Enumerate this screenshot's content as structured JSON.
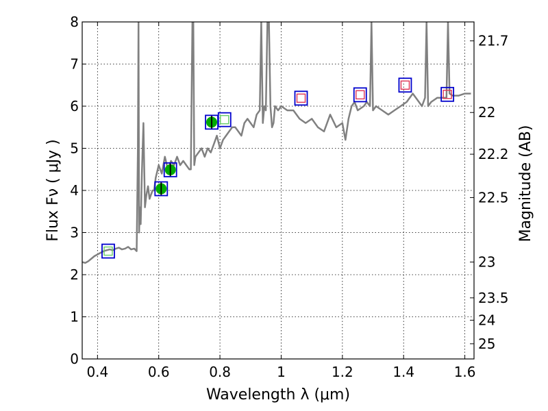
{
  "chart_data": {
    "type": "line",
    "xlabel": "Wavelength  λ (μm)",
    "ylabel": "Flux  Fν  ( μJy )",
    "y2label": "Magnitude (AB)",
    "xlim": [
      0.35,
      1.63
    ],
    "ylim": [
      0,
      8
    ],
    "x_ticks": [
      {
        "v": 0.4,
        "label": "0.4"
      },
      {
        "v": 0.6,
        "label": "0.6"
      },
      {
        "v": 0.8,
        "label": "0.8"
      },
      {
        "v": 1.0,
        "label": "1"
      },
      {
        "v": 1.2,
        "label": "1.2"
      },
      {
        "v": 1.4,
        "label": "1.4"
      },
      {
        "v": 1.6,
        "label": "1.6"
      }
    ],
    "y_ticks": [
      {
        "v": 0,
        "label": "0"
      },
      {
        "v": 1,
        "label": "1"
      },
      {
        "v": 2,
        "label": "2"
      },
      {
        "v": 3,
        "label": "3"
      },
      {
        "v": 4,
        "label": "4"
      },
      {
        "v": 5,
        "label": "5"
      },
      {
        "v": 6,
        "label": "6"
      },
      {
        "v": 7,
        "label": "7"
      },
      {
        "v": 8,
        "label": "8"
      }
    ],
    "y2_ticks": [
      {
        "flux": 7.55,
        "label": "21.7"
      },
      {
        "flux": 5.85,
        "label": "22"
      },
      {
        "flux": 4.86,
        "label": "22.2"
      },
      {
        "flux": 3.83,
        "label": "22.5"
      },
      {
        "flux": 2.3,
        "label": "23"
      },
      {
        "flux": 1.45,
        "label": "23.5"
      },
      {
        "flux": 0.92,
        "label": "24"
      },
      {
        "flux": 0.36,
        "label": "25"
      }
    ],
    "grid": true,
    "grid_style": "dotted",
    "colors": {
      "spectrum": "#808080",
      "model_box": "#0000cc",
      "optical_obs": "#66cc66",
      "nir_obs": "#dd3355",
      "detection_point": "#00aa00"
    },
    "series": [
      {
        "kind": "spectrum",
        "x": [
          0.35,
          0.36,
          0.37,
          0.38,
          0.39,
          0.4,
          0.41,
          0.42,
          0.43,
          0.44,
          0.45,
          0.46,
          0.47,
          0.48,
          0.49,
          0.5,
          0.51,
          0.52,
          0.528,
          0.532,
          0.534,
          0.536,
          0.538,
          0.541,
          0.545,
          0.55,
          0.555,
          0.56,
          0.565,
          0.57,
          0.575,
          0.58,
          0.585,
          0.59,
          0.6,
          0.61,
          0.62,
          0.63,
          0.64,
          0.65,
          0.66,
          0.67,
          0.68,
          0.69,
          0.7,
          0.705,
          0.71,
          0.713,
          0.716,
          0.72,
          0.73,
          0.74,
          0.75,
          0.76,
          0.77,
          0.78,
          0.79,
          0.8,
          0.81,
          0.82,
          0.83,
          0.84,
          0.85,
          0.86,
          0.87,
          0.88,
          0.89,
          0.9,
          0.91,
          0.92,
          0.93,
          0.935,
          0.94,
          0.945,
          0.95,
          0.955,
          0.96,
          0.965,
          0.97,
          0.975,
          0.98,
          0.99,
          1.0,
          1.02,
          1.04,
          1.06,
          1.08,
          1.1,
          1.12,
          1.14,
          1.16,
          1.18,
          1.2,
          1.21,
          1.22,
          1.23,
          1.24,
          1.25,
          1.27,
          1.28,
          1.29,
          1.295,
          1.3,
          1.31,
          1.33,
          1.35,
          1.37,
          1.39,
          1.41,
          1.43,
          1.45,
          1.46,
          1.47,
          1.475,
          1.48,
          1.49,
          1.51,
          1.53,
          1.54,
          1.545,
          1.55,
          1.56,
          1.58,
          1.6,
          1.62
        ],
        "y": [
          2.3,
          2.28,
          2.32,
          2.38,
          2.44,
          2.48,
          2.52,
          2.56,
          2.58,
          2.6,
          2.58,
          2.62,
          2.64,
          2.6,
          2.62,
          2.66,
          2.6,
          2.62,
          2.56,
          5.0,
          8.0,
          3.0,
          3.6,
          3.2,
          4.4,
          5.6,
          3.6,
          3.9,
          4.1,
          3.8,
          3.9,
          4.0,
          4.0,
          4.3,
          4.6,
          4.4,
          4.8,
          4.5,
          4.7,
          4.6,
          4.8,
          4.6,
          4.7,
          4.6,
          4.5,
          4.5,
          8.0,
          8.0,
          4.6,
          4.8,
          4.9,
          5.0,
          4.8,
          5.0,
          4.9,
          5.1,
          5.3,
          5.0,
          5.2,
          5.3,
          5.4,
          5.5,
          5.5,
          5.4,
          5.3,
          5.6,
          5.7,
          5.6,
          5.5,
          5.8,
          5.9,
          8.0,
          5.6,
          6.0,
          5.9,
          8.0,
          8.0,
          6.0,
          5.5,
          5.6,
          6.0,
          5.9,
          6.0,
          5.9,
          5.9,
          5.7,
          5.6,
          5.7,
          5.5,
          5.4,
          5.8,
          5.5,
          5.6,
          5.2,
          5.7,
          6.0,
          6.1,
          5.9,
          6.0,
          6.1,
          6.0,
          8.0,
          5.9,
          6.0,
          5.9,
          5.8,
          5.9,
          6.0,
          6.1,
          6.3,
          6.1,
          6.0,
          6.2,
          8.0,
          6.0,
          6.1,
          6.2,
          6.2,
          6.2,
          8.0,
          6.3,
          6.25,
          6.25,
          6.3,
          6.3
        ]
      },
      {
        "kind": "model_boxes",
        "x": [
          0.435,
          0.608,
          0.638,
          0.773,
          0.815,
          1.065,
          1.258,
          1.405,
          1.543
        ],
        "y": [
          2.56,
          4.04,
          4.49,
          5.62,
          5.68,
          6.19,
          6.27,
          6.5,
          6.28
        ]
      },
      {
        "kind": "optical_observations",
        "x": [
          0.435,
          0.815
        ],
        "y": [
          2.56,
          5.68
        ]
      },
      {
        "kind": "nir_observations",
        "x": [
          1.065,
          1.258,
          1.405,
          1.543
        ],
        "y": [
          6.19,
          6.27,
          6.5,
          6.28
        ]
      },
      {
        "kind": "detections",
        "x": [
          0.608,
          0.638,
          0.773
        ],
        "y": [
          4.04,
          4.49,
          5.62
        ],
        "yerr": [
          0.15,
          0.15,
          0.15
        ]
      }
    ]
  }
}
